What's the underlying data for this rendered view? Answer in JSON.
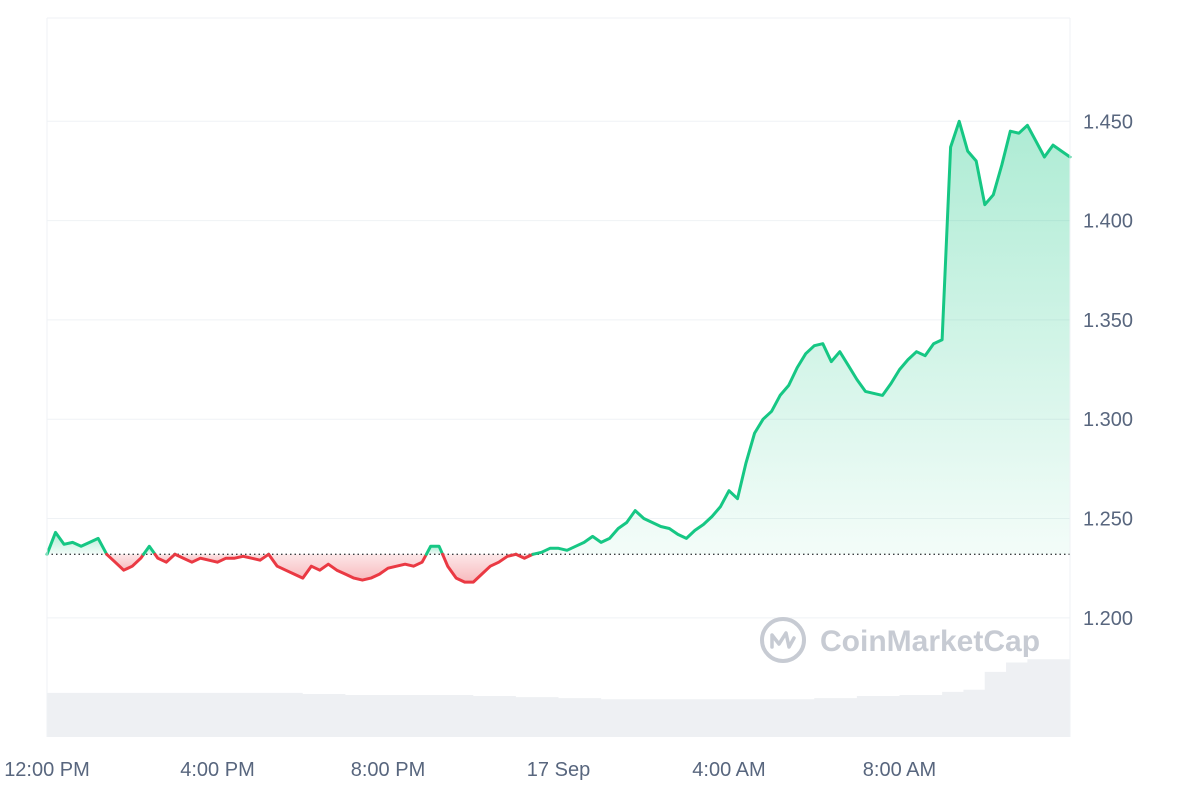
{
  "watermark": {
    "text": "CoinMarketCap",
    "icon": "coinmarketcap-logo-icon"
  },
  "colors": {
    "up": "#16c784",
    "down": "#ea3943",
    "up_fill": "#16c784",
    "down_fill": "#ea3943",
    "grid": "#eff2f5",
    "axis_text": "#58667e",
    "volume": "#eef0f3",
    "baseline": "#3c4043"
  },
  "chart_data": {
    "type": "line",
    "title": "",
    "xlabel": "",
    "ylabel": "",
    "x_ticks": [
      "12:00 PM",
      "4:00 PM",
      "8:00 PM",
      "17 Sep",
      "4:00 AM",
      "8:00 AM"
    ],
    "y_ticks": [
      "1.200",
      "1.250",
      "1.300",
      "1.350",
      "1.400",
      "1.450"
    ],
    "ylim": [
      1.14,
      1.502
    ],
    "xlim_hours": [
      0,
      24
    ],
    "reference_price": 1.232,
    "grid": true,
    "legend": "none",
    "series": [
      {
        "x_hours": [
          0.0,
          0.2,
          0.4,
          0.6,
          0.8,
          1.0,
          1.2,
          1.4,
          1.6,
          1.8,
          2.0,
          2.2,
          2.4,
          2.6,
          2.8,
          3.0,
          3.2,
          3.4,
          3.6,
          3.8,
          4.0,
          4.2,
          4.4,
          4.6,
          4.8,
          5.0,
          5.2,
          5.4,
          5.6,
          5.8,
          6.0,
          6.2,
          6.4,
          6.6,
          6.8,
          7.0,
          7.2,
          7.4,
          7.6,
          7.8,
          8.0,
          8.2,
          8.4,
          8.6,
          8.8,
          9.0,
          9.2,
          9.4,
          9.6,
          9.8,
          10.0,
          10.2,
          10.4,
          10.6,
          10.8,
          11.0,
          11.2,
          11.4,
          11.6,
          11.8,
          12.0,
          12.2,
          12.4,
          12.6,
          12.8,
          13.0,
          13.2,
          13.4,
          13.6,
          13.8,
          14.0,
          14.2,
          14.4,
          14.6,
          14.8,
          15.0,
          15.2,
          15.4,
          15.6,
          15.8,
          16.0,
          16.2,
          16.4,
          16.6,
          16.8,
          17.0,
          17.2,
          17.4,
          17.6,
          17.8,
          18.0,
          18.2,
          18.4,
          18.6,
          18.8,
          19.0,
          19.2,
          19.4,
          19.6,
          19.8,
          20.0,
          20.2,
          20.4,
          20.6,
          20.8,
          21.0,
          21.2,
          21.4,
          21.6,
          21.8,
          22.0,
          22.2,
          22.4,
          22.6,
          22.8,
          23.0,
          23.2,
          23.4,
          23.6,
          23.8,
          24.0
        ],
        "values": [
          1.232,
          1.243,
          1.237,
          1.238,
          1.236,
          1.238,
          1.24,
          1.232,
          1.228,
          1.224,
          1.226,
          1.23,
          1.236,
          1.23,
          1.228,
          1.232,
          1.23,
          1.228,
          1.23,
          1.229,
          1.228,
          1.23,
          1.23,
          1.231,
          1.23,
          1.229,
          1.232,
          1.226,
          1.224,
          1.222,
          1.22,
          1.226,
          1.224,
          1.227,
          1.224,
          1.222,
          1.22,
          1.219,
          1.22,
          1.222,
          1.225,
          1.226,
          1.227,
          1.226,
          1.228,
          1.236,
          1.236,
          1.226,
          1.22,
          1.218,
          1.218,
          1.222,
          1.226,
          1.228,
          1.231,
          1.232,
          1.23,
          1.232,
          1.233,
          1.235,
          1.235,
          1.234,
          1.236,
          1.238,
          1.241,
          1.238,
          1.24,
          1.245,
          1.248,
          1.254,
          1.25,
          1.248,
          1.246,
          1.245,
          1.242,
          1.24,
          1.244,
          1.247,
          1.251,
          1.256,
          1.264,
          1.26,
          1.278,
          1.293,
          1.3,
          1.304,
          1.312,
          1.317,
          1.326,
          1.333,
          1.337,
          1.338,
          1.329,
          1.334,
          1.327,
          1.32,
          1.314,
          1.313,
          1.312,
          1.318,
          1.325,
          1.33,
          1.334,
          1.332,
          1.338,
          1.34,
          1.437,
          1.45,
          1.435,
          1.43,
          1.408,
          1.413,
          1.428,
          1.445,
          1.444,
          1.448,
          1.44,
          1.432,
          1.438,
          1.435,
          1.432
        ]
      }
    ],
    "volume_hours": [
      0.0,
      1.0,
      2.0,
      3.0,
      4.0,
      5.0,
      6.0,
      7.0,
      8.0,
      9.0,
      10.0,
      11.0,
      12.0,
      13.0,
      14.0,
      15.0,
      16.0,
      17.0,
      18.0,
      19.0,
      20.0,
      21.0,
      21.5,
      22.0,
      22.5,
      23.0,
      23.5,
      24.0
    ],
    "volume_level": [
      0.42,
      0.42,
      0.42,
      0.42,
      0.42,
      0.42,
      0.41,
      0.4,
      0.4,
      0.4,
      0.39,
      0.38,
      0.37,
      0.36,
      0.36,
      0.36,
      0.36,
      0.36,
      0.37,
      0.39,
      0.4,
      0.43,
      0.45,
      0.62,
      0.71,
      0.74,
      0.74,
      0.76
    ]
  }
}
